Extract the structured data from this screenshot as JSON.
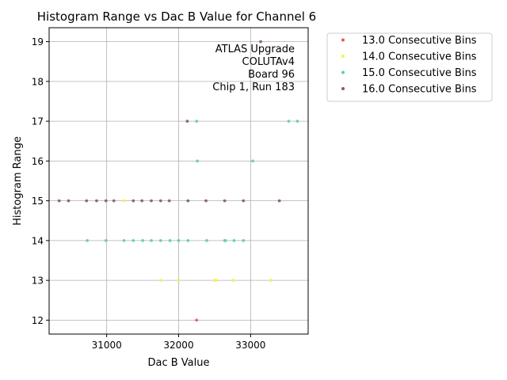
{
  "chart_data": {
    "type": "scatter",
    "title": "Histogram Range vs Dac B Value for Channel 6",
    "xlabel": "Dac B Value",
    "ylabel": "Histogram Range",
    "xlim": [
      30200,
      33800
    ],
    "ylim": [
      11.65,
      19.35
    ],
    "xticks": [
      31000,
      32000,
      33000
    ],
    "xtick_labels": [
      "31000",
      "32000",
      "33000"
    ],
    "yticks": [
      12,
      13,
      14,
      15,
      16,
      17,
      18,
      19
    ],
    "ytick_labels": [
      "12",
      "13",
      "14",
      "15",
      "16",
      "17",
      "18",
      "19"
    ],
    "grid": true,
    "legend_position": "outside-right",
    "annotation": [
      "ATLAS Upgrade",
      "COLUTAv4",
      "Board 96",
      "Chip 1, Run 183"
    ],
    "series": [
      {
        "name": "13.0 Consecutive Bins",
        "color": "#f0525a",
        "points": [
          [
            32250,
            12
          ]
        ]
      },
      {
        "name": "14.0 Consecutive Bins",
        "color": "#f2f24a",
        "points": [
          [
            31240,
            15
          ],
          [
            31750,
            13
          ],
          [
            32000,
            13
          ],
          [
            32500,
            13
          ],
          [
            32520,
            13
          ],
          [
            32760,
            13
          ],
          [
            33280,
            13
          ]
        ]
      },
      {
        "name": "15.0 Consecutive Bins",
        "color": "#5fcfa8",
        "points": [
          [
            30730,
            14
          ],
          [
            30990,
            14
          ],
          [
            31240,
            14
          ],
          [
            31370,
            14
          ],
          [
            31500,
            14
          ],
          [
            31620,
            14
          ],
          [
            31750,
            14
          ],
          [
            31880,
            14
          ],
          [
            32000,
            14
          ],
          [
            32130,
            14
          ],
          [
            32250,
            17
          ],
          [
            32260,
            16
          ],
          [
            32390,
            14
          ],
          [
            32640,
            14
          ],
          [
            32650,
            14
          ],
          [
            32770,
            14
          ],
          [
            32900,
            14
          ],
          [
            33030,
            16
          ],
          [
            33530,
            17
          ],
          [
            33650,
            17
          ]
        ]
      },
      {
        "name": "16.0 Consecutive Bins",
        "color": "#8a5a6a",
        "points": [
          [
            30340,
            15
          ],
          [
            30470,
            15
          ],
          [
            30720,
            15
          ],
          [
            30860,
            15
          ],
          [
            30990,
            15
          ],
          [
            31100,
            15
          ],
          [
            31370,
            15
          ],
          [
            31490,
            15
          ],
          [
            31620,
            15
          ],
          [
            31750,
            15
          ],
          [
            31870,
            15
          ],
          [
            32120,
            17
          ],
          [
            32130,
            15
          ],
          [
            32380,
            15
          ],
          [
            32640,
            15
          ],
          [
            32900,
            15
          ],
          [
            33140,
            19
          ],
          [
            33400,
            15
          ]
        ]
      }
    ]
  }
}
